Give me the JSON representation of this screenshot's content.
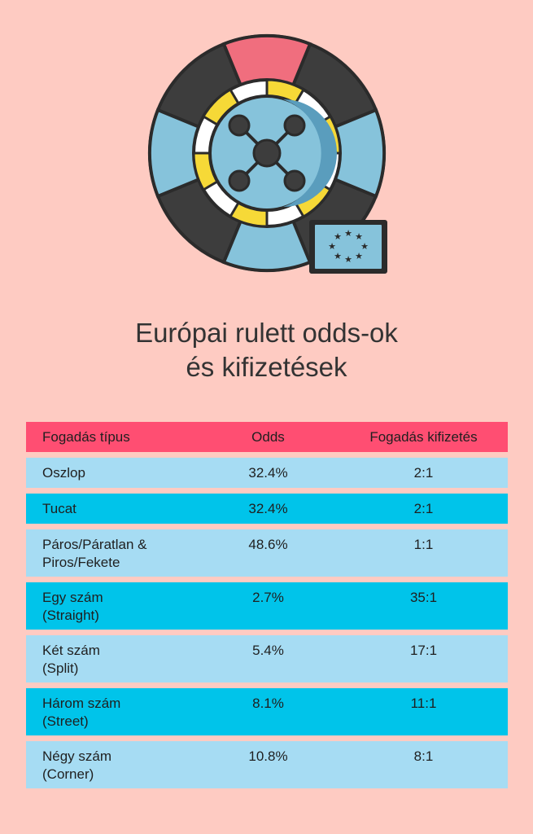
{
  "title": {
    "line1": "Európai rulett odds-ok",
    "line2": "és kifizetések"
  },
  "table": {
    "headers": [
      "Fogadás típus",
      "Odds",
      "Fogadás kifizetés"
    ],
    "rows": [
      {
        "type_line1": "Oszlop",
        "type_line2": "",
        "odds": "32.4%",
        "payout": "2:1",
        "style": "light"
      },
      {
        "type_line1": "Tucat",
        "type_line2": "",
        "odds": "32.4%",
        "payout": "2:1",
        "style": "dark"
      },
      {
        "type_line1": "Páros/Páratlan &",
        "type_line2": "Piros/Fekete",
        "odds": "48.6%",
        "payout": "1:1",
        "style": "light"
      },
      {
        "type_line1": "Egy szám",
        "type_line2": "(Straight)",
        "odds": "2.7%",
        "payout": "35:1",
        "style": "dark"
      },
      {
        "type_line1": "Két szám",
        "type_line2": "(Split)",
        "odds": "5.4%",
        "payout": "17:1",
        "style": "light"
      },
      {
        "type_line1": "Három szám",
        "type_line2": "(Street)",
        "odds": "8.1%",
        "payout": "11:1",
        "style": "dark"
      },
      {
        "type_line1": "Négy szám",
        "type_line2": "(Corner)",
        "odds": "10.8%",
        "payout": "8:1",
        "style": "light"
      }
    ]
  },
  "colors": {
    "background": "#fecbc2",
    "header": "#ff4e72",
    "row_light": "#a6dcf3",
    "row_dark": "#00c4ea"
  },
  "icons": [
    "roulette-wheel-icon",
    "eu-flag-icon"
  ]
}
